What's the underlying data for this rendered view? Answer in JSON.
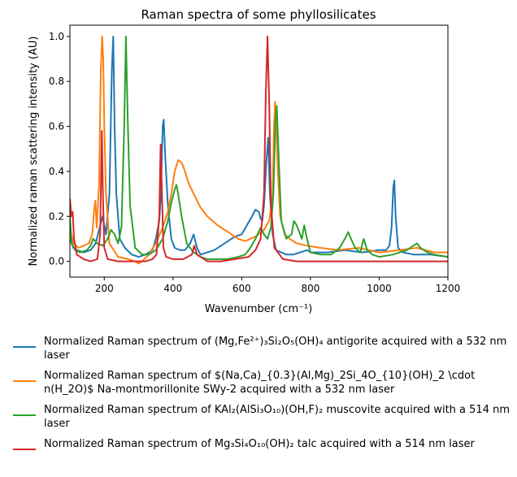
{
  "chart_data": {
    "type": "line",
    "title": "Raman spectra of some phyllosilicates",
    "xlabel": "Wavenumber (cm⁻¹)",
    "ylabel": "Normalized raman scattering intensity (AU)",
    "xlim": [
      100,
      1200
    ],
    "ylim": [
      -0.07,
      1.05
    ],
    "xticks": [
      200,
      400,
      600,
      800,
      1000,
      1200
    ],
    "yticks": [
      0.0,
      0.2,
      0.4,
      0.6,
      0.8,
      1.0
    ],
    "ytick_labels": [
      "0.0",
      "0.2",
      "0.4",
      "0.6",
      "0.8",
      "1.0"
    ],
    "grid": false,
    "legend_position": "below",
    "series": [
      {
        "name": "Normalized Raman spectrum of (Mg,Fe²⁺)₃Si₂O₅(OH)₄ antigorite acquired with a 532 nm laser",
        "color": "#1f77b4",
        "x": [
          100,
          110,
          120,
          140,
          160,
          175,
          185,
          195,
          205,
          215,
          222,
          226,
          230,
          235,
          245,
          260,
          280,
          300,
          320,
          340,
          350,
          360,
          365,
          370,
          373,
          378,
          385,
          395,
          405,
          420,
          435,
          450,
          460,
          470,
          480,
          500,
          520,
          540,
          560,
          580,
          600,
          615,
          630,
          640,
          650,
          655,
          660,
          665,
          672,
          677,
          682,
          690,
          700,
          715,
          730,
          750,
          770,
          790,
          800,
          850,
          900,
          950,
          1000,
          1020,
          1030,
          1036,
          1041,
          1044,
          1048,
          1055,
          1070,
          1100,
          1120,
          1150,
          1200
        ],
        "y": [
          0.1,
          0.06,
          0.05,
          0.04,
          0.05,
          0.08,
          0.14,
          0.2,
          0.12,
          0.3,
          0.85,
          1.0,
          0.6,
          0.3,
          0.1,
          0.06,
          0.03,
          0.02,
          0.03,
          0.05,
          0.1,
          0.18,
          0.3,
          0.6,
          0.63,
          0.45,
          0.25,
          0.1,
          0.06,
          0.05,
          0.05,
          0.08,
          0.12,
          0.06,
          0.03,
          0.04,
          0.05,
          0.07,
          0.09,
          0.11,
          0.12,
          0.16,
          0.2,
          0.23,
          0.22,
          0.19,
          0.18,
          0.25,
          0.45,
          0.55,
          0.3,
          0.12,
          0.05,
          0.04,
          0.03,
          0.03,
          0.04,
          0.05,
          0.04,
          0.04,
          0.05,
          0.04,
          0.05,
          0.05,
          0.07,
          0.15,
          0.33,
          0.36,
          0.2,
          0.06,
          0.04,
          0.03,
          0.03,
          0.03,
          0.02
        ]
      },
      {
        "name": "Normalized Raman spectrum of $(Na,Ca)_{0.3}(Al,Mg)_2Si_4O_{10}(OH)_2 \\cdot n(H_2O)$ Na-montmorillonite SWy-2 acquired with a 532 nm laser",
        "color": "#ff7f0e",
        "x": [
          100,
          110,
          125,
          140,
          155,
          165,
          170,
          174,
          178,
          185,
          190,
          194,
          197,
          200,
          205,
          215,
          240,
          270,
          290,
          300,
          310,
          330,
          350,
          370,
          385,
          395,
          405,
          415,
          425,
          435,
          445,
          460,
          480,
          500,
          530,
          560,
          590,
          610,
          640,
          665,
          680,
          690,
          694,
          697,
          700,
          705,
          712,
          725,
          740,
          760,
          790,
          830,
          880,
          940,
          1000,
          1060,
          1110,
          1160,
          1200
        ],
        "y": [
          0.15,
          0.08,
          0.06,
          0.07,
          0.08,
          0.12,
          0.22,
          0.27,
          0.15,
          0.35,
          0.85,
          1.0,
          0.9,
          0.6,
          0.3,
          0.08,
          0.02,
          0.01,
          0.0,
          -0.01,
          0.0,
          0.03,
          0.08,
          0.15,
          0.22,
          0.3,
          0.4,
          0.45,
          0.44,
          0.4,
          0.35,
          0.3,
          0.24,
          0.2,
          0.16,
          0.13,
          0.1,
          0.09,
          0.11,
          0.14,
          0.18,
          0.3,
          0.6,
          0.71,
          0.65,
          0.4,
          0.2,
          0.12,
          0.1,
          0.08,
          0.07,
          0.06,
          0.05,
          0.06,
          0.04,
          0.05,
          0.06,
          0.04,
          0.04
        ]
      },
      {
        "name": "Normalized Raman spectrum of KAl₂(AlSi₃O₁₀)(OH,F)₂ muscovite acquired with a 514 nm laser",
        "color": "#2ca02c",
        "x": [
          100,
          105,
          115,
          130,
          150,
          160,
          168,
          180,
          195,
          210,
          220,
          230,
          240,
          250,
          258,
          263,
          268,
          275,
          290,
          310,
          330,
          350,
          370,
          385,
          395,
          405,
          410,
          415,
          425,
          440,
          460,
          480,
          500,
          530,
          560,
          590,
          610,
          625,
          640,
          655,
          665,
          675,
          685,
          692,
          698,
          702,
          708,
          715,
          730,
          745,
          752,
          760,
          775,
          782,
          790,
          800,
          830,
          860,
          885,
          900,
          910,
          918,
          930,
          945,
          955,
          965,
          980,
          1000,
          1040,
          1080,
          1100,
          1110,
          1120,
          1140,
          1160,
          1200
        ],
        "y": [
          0.2,
          0.08,
          0.05,
          0.04,
          0.05,
          0.07,
          0.1,
          0.08,
          0.07,
          0.1,
          0.14,
          0.12,
          0.08,
          0.15,
          0.6,
          1.0,
          0.65,
          0.25,
          0.06,
          0.03,
          0.03,
          0.05,
          0.1,
          0.18,
          0.26,
          0.32,
          0.34,
          0.3,
          0.2,
          0.08,
          0.04,
          0.02,
          0.01,
          0.01,
          0.01,
          0.02,
          0.03,
          0.06,
          0.1,
          0.15,
          0.12,
          0.1,
          0.15,
          0.3,
          0.62,
          0.69,
          0.45,
          0.18,
          0.1,
          0.12,
          0.18,
          0.16,
          0.1,
          0.16,
          0.1,
          0.04,
          0.03,
          0.03,
          0.06,
          0.1,
          0.13,
          0.1,
          0.06,
          0.04,
          0.1,
          0.05,
          0.03,
          0.02,
          0.03,
          0.05,
          0.07,
          0.08,
          0.06,
          0.04,
          0.03,
          0.02
        ]
      },
      {
        "name": "Normalized Raman spectrum of Mg₃Si₄O₁₀(OH)₂ talc acquired with a 514 nm laser",
        "color": "#d62728",
        "x": [
          100,
          104,
          108,
          112,
          120,
          140,
          160,
          180,
          188,
          193,
          196,
          200,
          210,
          240,
          280,
          320,
          340,
          352,
          360,
          364,
          367,
          372,
          380,
          400,
          430,
          455,
          462,
          470,
          500,
          540,
          580,
          620,
          640,
          655,
          665,
          670,
          675,
          680,
          685,
          695,
          720,
          760,
          790,
          800,
          830,
          900,
          1000,
          1100,
          1200
        ],
        "y": [
          0.28,
          0.2,
          0.22,
          0.1,
          0.03,
          0.01,
          0.0,
          0.01,
          0.12,
          0.58,
          0.3,
          0.06,
          0.01,
          0.0,
          0.0,
          0.0,
          0.01,
          0.03,
          0.2,
          0.52,
          0.35,
          0.06,
          0.02,
          0.01,
          0.01,
          0.03,
          0.07,
          0.03,
          0.0,
          0.0,
          0.01,
          0.02,
          0.05,
          0.1,
          0.3,
          0.75,
          1.0,
          0.7,
          0.25,
          0.06,
          0.01,
          0.0,
          0.0,
          0.0,
          0.0,
          0.0,
          0.0,
          0.0,
          0.0
        ]
      }
    ]
  }
}
